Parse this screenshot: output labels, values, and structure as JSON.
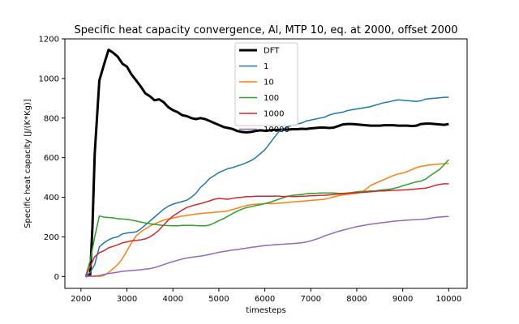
{
  "chart_data": {
    "type": "line",
    "title": "Specific heat capacity convergence, Al, MTP 10, eq. at 2000, offset 2000",
    "xlabel": "timesteps",
    "ylabel": "Specific heat capacity [J/(K*Kg)]",
    "xlim": [
      1650,
      10400
    ],
    "ylim": [
      -60,
      1200
    ],
    "xticks": [
      2000,
      3000,
      4000,
      5000,
      6000,
      7000,
      8000,
      9000,
      10000
    ],
    "yticks": [
      0,
      200,
      400,
      600,
      800,
      1000,
      1200
    ],
    "legend_position": "top-center",
    "grid": false,
    "series": [
      {
        "name": "DFT",
        "color": "#000000",
        "width": 3,
        "x": [
          2100,
          2200,
          2250,
          2300,
          2400,
          2500,
          2600,
          2700,
          2800,
          2900,
          3000,
          3100,
          3200,
          3300,
          3400,
          3500,
          3600,
          3700,
          3800,
          3900,
          4000,
          4100,
          4200,
          4300,
          4400,
          4500,
          4600,
          4700,
          4800,
          4900,
          5000,
          5100,
          5200,
          5300,
          5400,
          5500,
          5600,
          5700,
          5800,
          5900,
          6000,
          6100,
          6200,
          6300,
          6400,
          6500,
          6600,
          6700,
          6800,
          6900,
          7000,
          7100,
          7200,
          7300,
          7400,
          7500,
          7600,
          7700,
          7800,
          7900,
          8000,
          8100,
          8200,
          8300,
          8400,
          8500,
          8600,
          8700,
          8800,
          8900,
          9000,
          9100,
          9200,
          9300,
          9400,
          9500,
          9600,
          9700,
          9800,
          9900,
          10000
        ],
        "y": [
          0,
          10,
          250,
          620,
          990,
          1070,
          1145,
          1130,
          1110,
          1075,
          1060,
          1020,
          990,
          960,
          925,
          910,
          890,
          895,
          880,
          855,
          840,
          830,
          815,
          810,
          800,
          795,
          800,
          795,
          785,
          775,
          765,
          755,
          750,
          745,
          735,
          730,
          728,
          730,
          735,
          738,
          736,
          738,
          740,
          740,
          742,
          742,
          744,
          744,
          746,
          745,
          748,
          750,
          752,
          752,
          750,
          752,
          760,
          768,
          770,
          770,
          768,
          766,
          764,
          762,
          762,
          762,
          764,
          764,
          764,
          762,
          762,
          762,
          760,
          762,
          770,
          772,
          772,
          770,
          768,
          766,
          770
        ]
      },
      {
        "name": "1",
        "color": "#1f77b4",
        "width": 1.5,
        "x": [
          2100,
          2200,
          2300,
          2400,
          2500,
          2600,
          2700,
          2800,
          2900,
          3000,
          3100,
          3200,
          3300,
          3400,
          3500,
          3600,
          3700,
          3800,
          3900,
          4000,
          4100,
          4200,
          4300,
          4400,
          4500,
          4600,
          4700,
          4800,
          4900,
          5000,
          5100,
          5200,
          5300,
          5400,
          5500,
          5600,
          5700,
          5800,
          5900,
          6000,
          6100,
          6200,
          6300,
          6400,
          6500,
          6600,
          6700,
          6800,
          6900,
          7000,
          7100,
          7200,
          7300,
          7400,
          7500,
          7600,
          7700,
          7800,
          7900,
          8000,
          8100,
          8200,
          8300,
          8400,
          8500,
          8600,
          8700,
          8800,
          8900,
          9000,
          9100,
          9200,
          9300,
          9400,
          9500,
          9600,
          9700,
          9800,
          9900,
          10000
        ],
        "y": [
          0,
          20,
          60,
          150,
          170,
          185,
          195,
          200,
          215,
          220,
          222,
          225,
          240,
          260,
          280,
          300,
          320,
          340,
          355,
          365,
          372,
          378,
          385,
          400,
          420,
          450,
          470,
          495,
          510,
          525,
          535,
          545,
          550,
          558,
          565,
          575,
          585,
          600,
          620,
          640,
          670,
          700,
          730,
          745,
          755,
          765,
          770,
          775,
          785,
          790,
          795,
          800,
          805,
          815,
          822,
          826,
          830,
          838,
          842,
          846,
          850,
          854,
          858,
          865,
          872,
          878,
          882,
          888,
          892,
          890,
          888,
          886,
          884,
          888,
          896,
          898,
          900,
          902,
          905,
          905
        ]
      },
      {
        "name": "10",
        "color": "#ff7f0e",
        "width": 1.5,
        "x": [
          2100,
          2200,
          2300,
          2400,
          2500,
          2600,
          2700,
          2800,
          2900,
          3000,
          3100,
          3200,
          3300,
          3400,
          3500,
          3600,
          3700,
          3800,
          3900,
          4000,
          4100,
          4200,
          4300,
          4400,
          4500,
          4600,
          4700,
          4800,
          4900,
          5000,
          5100,
          5200,
          5300,
          5400,
          5500,
          5600,
          5700,
          5800,
          5900,
          6000,
          6100,
          6200,
          6300,
          6400,
          6500,
          6600,
          6700,
          6800,
          6900,
          7000,
          7100,
          7200,
          7300,
          7400,
          7500,
          7600,
          7700,
          7800,
          7900,
          8000,
          8100,
          8200,
          8300,
          8400,
          8500,
          8600,
          8700,
          8800,
          8900,
          9000,
          9100,
          9200,
          9300,
          9400,
          9500,
          9600,
          9700,
          9800,
          9900,
          10000
        ],
        "y": [
          0,
          0,
          0,
          0,
          5,
          20,
          40,
          60,
          90,
          130,
          170,
          205,
          225,
          240,
          255,
          265,
          275,
          285,
          290,
          295,
          300,
          305,
          308,
          312,
          315,
          318,
          320,
          322,
          324,
          326,
          328,
          332,
          338,
          345,
          352,
          358,
          362,
          365,
          366,
          368,
          368,
          368,
          370,
          372,
          374,
          376,
          378,
          380,
          382,
          384,
          386,
          388,
          390,
          395,
          402,
          408,
          412,
          415,
          418,
          420,
          425,
          440,
          460,
          470,
          480,
          490,
          500,
          510,
          518,
          522,
          530,
          540,
          550,
          556,
          560,
          563,
          566,
          568,
          570,
          572
        ]
      },
      {
        "name": "100",
        "color": "#2ca02c",
        "width": 1.5,
        "x": [
          2100,
          2200,
          2300,
          2400,
          2500,
          2600,
          2700,
          2800,
          2900,
          3000,
          3100,
          3200,
          3300,
          3400,
          3500,
          3600,
          3700,
          3800,
          3900,
          4000,
          4100,
          4200,
          4300,
          4400,
          4500,
          4600,
          4700,
          4800,
          4900,
          5000,
          5100,
          5200,
          5300,
          5400,
          5500,
          5600,
          5700,
          5800,
          5900,
          6000,
          6100,
          6200,
          6300,
          6400,
          6500,
          6600,
          6700,
          6800,
          6900,
          7000,
          7100,
          7200,
          7300,
          7400,
          7500,
          7600,
          7700,
          7800,
          7900,
          8000,
          8100,
          8200,
          8300,
          8400,
          8500,
          8600,
          8700,
          8800,
          8900,
          9000,
          9100,
          9200,
          9300,
          9400,
          9500,
          9600,
          9700,
          9800,
          9900,
          10000
        ],
        "y": [
          0,
          80,
          200,
          305,
          300,
          298,
          296,
          292,
          290,
          288,
          285,
          280,
          275,
          270,
          266,
          263,
          260,
          258,
          257,
          256,
          256,
          258,
          258,
          258,
          257,
          256,
          256,
          260,
          270,
          282,
          292,
          305,
          318,
          330,
          340,
          348,
          352,
          358,
          362,
          368,
          374,
          382,
          390,
          398,
          405,
          410,
          412,
          414,
          418,
          420,
          420,
          422,
          422,
          422,
          422,
          420,
          420,
          422,
          424,
          428,
          430,
          430,
          432,
          432,
          436,
          438,
          440,
          445,
          450,
          458,
          465,
          472,
          478,
          482,
          492,
          510,
          525,
          540,
          565,
          590
        ]
      },
      {
        "name": "1000",
        "color": "#d62728",
        "width": 1.5,
        "x": [
          2100,
          2200,
          2300,
          2400,
          2500,
          2600,
          2700,
          2800,
          2900,
          3000,
          3100,
          3200,
          3300,
          3400,
          3500,
          3600,
          3700,
          3800,
          3900,
          4000,
          4100,
          4200,
          4300,
          4400,
          4500,
          4600,
          4700,
          4800,
          4900,
          5000,
          5100,
          5200,
          5300,
          5400,
          5500,
          5600,
          5700,
          5800,
          5900,
          6000,
          6100,
          6200,
          6300,
          6400,
          6500,
          6600,
          6700,
          6800,
          6900,
          7000,
          7100,
          7200,
          7300,
          7400,
          7500,
          7600,
          7700,
          7800,
          7900,
          8000,
          8100,
          8200,
          8300,
          8400,
          8500,
          8600,
          8700,
          8800,
          8900,
          9000,
          9100,
          9200,
          9300,
          9400,
          9500,
          9600,
          9700,
          9800,
          9900,
          10000
        ],
        "y": [
          0,
          50,
          100,
          120,
          130,
          145,
          152,
          160,
          170,
          175,
          180,
          182,
          185,
          190,
          200,
          215,
          235,
          260,
          285,
          305,
          320,
          335,
          348,
          356,
          362,
          368,
          375,
          382,
          390,
          394,
          392,
          390,
          395,
          398,
          400,
          403,
          403,
          405,
          405,
          405,
          405,
          406,
          406,
          404,
          405,
          404,
          404,
          405,
          406,
          408,
          408,
          410,
          410,
          412,
          414,
          416,
          418,
          420,
          422,
          424,
          424,
          426,
          428,
          430,
          432,
          432,
          434,
          435,
          436,
          437,
          438,
          440,
          442,
          444,
          446,
          452,
          460,
          465,
          468,
          468
        ]
      },
      {
        "name": "10000",
        "color": "#9467bd",
        "width": 1.5,
        "x": [
          2100,
          2200,
          2300,
          2400,
          2500,
          2600,
          2700,
          2800,
          2900,
          3000,
          3100,
          3200,
          3300,
          3400,
          3500,
          3600,
          3700,
          3800,
          3900,
          4000,
          4100,
          4200,
          4300,
          4400,
          4500,
          4600,
          4700,
          4800,
          4900,
          5000,
          5100,
          5200,
          5300,
          5400,
          5500,
          5600,
          5700,
          5800,
          5900,
          6000,
          6100,
          6200,
          6300,
          6400,
          6500,
          6600,
          6700,
          6800,
          6900,
          7000,
          7100,
          7200,
          7300,
          7400,
          7500,
          7600,
          7700,
          7800,
          7900,
          8000,
          8100,
          8200,
          8300,
          8400,
          8500,
          8600,
          8700,
          8800,
          8900,
          9000,
          9100,
          9200,
          9300,
          9400,
          9500,
          9600,
          9700,
          9800,
          9900,
          10000
        ],
        "y": [
          0,
          2,
          3,
          5,
          10,
          15,
          18,
          22,
          26,
          28,
          30,
          32,
          34,
          37,
          40,
          45,
          52,
          60,
          68,
          75,
          82,
          88,
          93,
          97,
          100,
          103,
          107,
          112,
          117,
          122,
          126,
          130,
          133,
          136,
          140,
          143,
          147,
          150,
          153,
          156,
          158,
          160,
          162,
          163,
          165,
          166,
          168,
          170,
          174,
          180,
          187,
          195,
          205,
          213,
          220,
          228,
          234,
          240,
          246,
          252,
          256,
          260,
          264,
          267,
          270,
          273,
          276,
          279,
          281,
          283,
          285,
          286,
          287,
          288,
          290,
          294,
          298,
          300,
          302,
          303
        ]
      }
    ]
  }
}
